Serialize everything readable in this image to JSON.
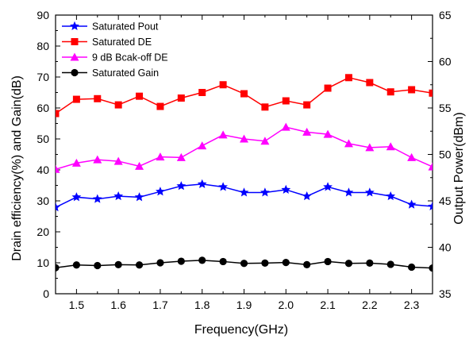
{
  "chart_data": {
    "type": "line",
    "title": "",
    "xlabel": "Frequency(GHz)",
    "ylabel_left": "Drain efficiency(%) and Gain(dB)",
    "ylabel_right": "Output Power(dBm)",
    "xlim": [
      1.45,
      2.35
    ],
    "ylim_left": [
      0,
      90
    ],
    "ylim_right": [
      35,
      65
    ],
    "x_ticks": [
      1.5,
      1.6,
      1.7,
      1.8,
      1.9,
      2.0,
      2.1,
      2.2,
      2.3
    ],
    "x_tick_labels": [
      "1.5",
      "1.6",
      "1.7",
      "1.8",
      "1.9",
      "2.0",
      "2.1",
      "2.2",
      "2.3"
    ],
    "left_ticks": [
      0,
      10,
      20,
      30,
      40,
      50,
      60,
      70,
      80,
      90
    ],
    "left_tick_labels": [
      "0",
      "10",
      "20",
      "30",
      "40",
      "50",
      "60",
      "70",
      "80",
      "90"
    ],
    "right_ticks": [
      35,
      40,
      45,
      50,
      55,
      60,
      65
    ],
    "right_tick_labels": [
      "35",
      "40",
      "45",
      "50",
      "55",
      "60",
      "65"
    ],
    "grid": false,
    "legend_position": "top-left",
    "x": [
      1.45,
      1.5,
      1.55,
      1.6,
      1.65,
      1.7,
      1.75,
      1.8,
      1.85,
      1.9,
      1.95,
      2.0,
      2.05,
      2.1,
      2.15,
      2.2,
      2.25,
      2.3,
      2.35
    ],
    "series": [
      {
        "name": "Saturated Pout",
        "axis": "right",
        "color": "#0000ff",
        "marker": "star",
        "values": [
          44.3,
          45.4,
          45.2,
          45.5,
          45.4,
          46.0,
          46.6,
          46.8,
          46.5,
          45.9,
          45.9,
          46.2,
          45.5,
          46.5,
          45.9,
          45.9,
          45.5,
          44.6,
          44.4
        ]
      },
      {
        "name": "Saturated DE",
        "axis": "left",
        "color": "#ff0000",
        "marker": "square",
        "values": [
          58.2,
          62.8,
          63.0,
          61.0,
          63.8,
          60.5,
          63.2,
          65.0,
          67.5,
          64.6,
          60.3,
          62.3,
          61.0,
          66.4,
          69.8,
          68.2,
          65.2,
          65.9,
          64.8
        ]
      },
      {
        "name": "9 dB Bcak-off DE",
        "axis": "left",
        "color": "#ff00ff",
        "marker": "triangle",
        "values": [
          40.2,
          42.2,
          43.3,
          42.8,
          41.2,
          44.2,
          44.0,
          47.8,
          51.3,
          50.0,
          49.3,
          53.8,
          52.2,
          51.5,
          48.5,
          47.2,
          47.5,
          44.0,
          41.0
        ]
      },
      {
        "name": "Saturated Gain",
        "axis": "left",
        "color": "#000000",
        "marker": "circle",
        "values": [
          8.4,
          9.3,
          9.1,
          9.4,
          9.3,
          10.0,
          10.5,
          10.8,
          10.4,
          9.8,
          9.9,
          10.1,
          9.4,
          10.4,
          9.8,
          9.9,
          9.5,
          8.6,
          8.3
        ]
      }
    ]
  }
}
